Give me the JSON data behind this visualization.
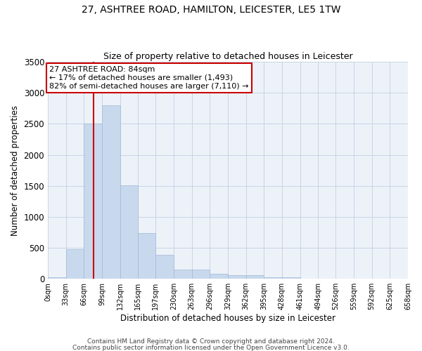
{
  "title": "27, ASHTREE ROAD, HAMILTON, LEICESTER, LE5 1TW",
  "subtitle": "Size of property relative to detached houses in Leicester",
  "xlabel": "Distribution of detached houses by size in Leicester",
  "ylabel": "Number of detached properties",
  "bin_labels": [
    "0sqm",
    "33sqm",
    "66sqm",
    "99sqm",
    "132sqm",
    "165sqm",
    "197sqm",
    "230sqm",
    "263sqm",
    "296sqm",
    "329sqm",
    "362sqm",
    "395sqm",
    "428sqm",
    "461sqm",
    "494sqm",
    "526sqm",
    "559sqm",
    "592sqm",
    "625sqm",
    "658sqm"
  ],
  "bin_edges": [
    0,
    33,
    66,
    99,
    132,
    165,
    197,
    230,
    263,
    296,
    329,
    362,
    395,
    428,
    461,
    494,
    526,
    559,
    592,
    625,
    658
  ],
  "bar_heights": [
    20,
    480,
    2510,
    2800,
    1510,
    740,
    390,
    150,
    150,
    80,
    60,
    55,
    30,
    20,
    0,
    0,
    0,
    0,
    0,
    0
  ],
  "bar_color": "#c9d9ed",
  "bar_edge_color": "#a0b8d8",
  "grid_color": "#c8d4e4",
  "bg_color": "#edf2f9",
  "vline_x": 84,
  "vline_color": "#cc0000",
  "annotation_text": "27 ASHTREE ROAD: 84sqm\n← 17% of detached houses are smaller (1,493)\n82% of semi-detached houses are larger (7,110) →",
  "annotation_box_color": "#ffffff",
  "annotation_box_edge": "#cc0000",
  "ylim": [
    0,
    3500
  ],
  "yticks": [
    0,
    500,
    1000,
    1500,
    2000,
    2500,
    3000,
    3500
  ],
  "footer1": "Contains HM Land Registry data © Crown copyright and database right 2024.",
  "footer2": "Contains public sector information licensed under the Open Government Licence v3.0."
}
